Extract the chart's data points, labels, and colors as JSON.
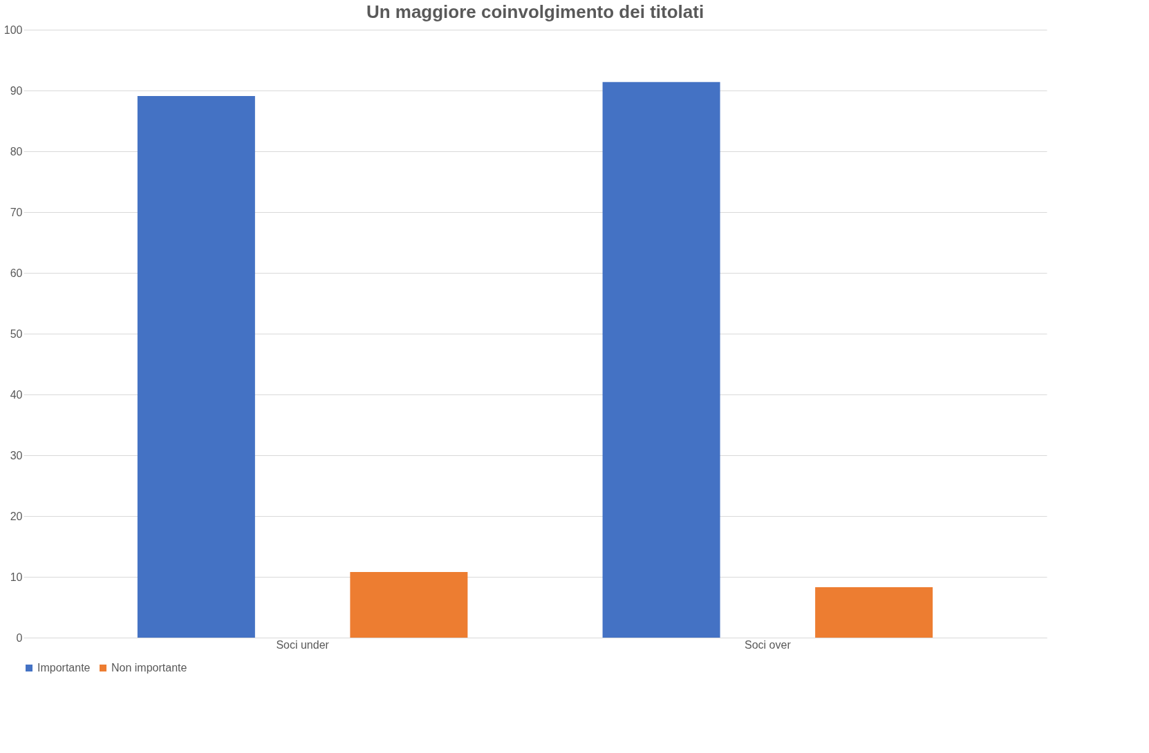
{
  "chart_data": {
    "type": "bar",
    "title": "Un maggiore coinvolgimento dei titolati",
    "categories": [
      "Soci under",
      "Soci over"
    ],
    "series": [
      {
        "name": "Importante",
        "color": "#4472c4",
        "values": [
          89.1,
          91.4
        ]
      },
      {
        "name": "Non importante",
        "color": "#ed7d31",
        "values": [
          10.8,
          8.3
        ]
      }
    ],
    "ylim": [
      0,
      100
    ],
    "yticks": [
      0,
      10,
      20,
      30,
      40,
      50,
      60,
      70,
      80,
      90,
      100
    ],
    "grid": "y",
    "legend": "bottom"
  }
}
